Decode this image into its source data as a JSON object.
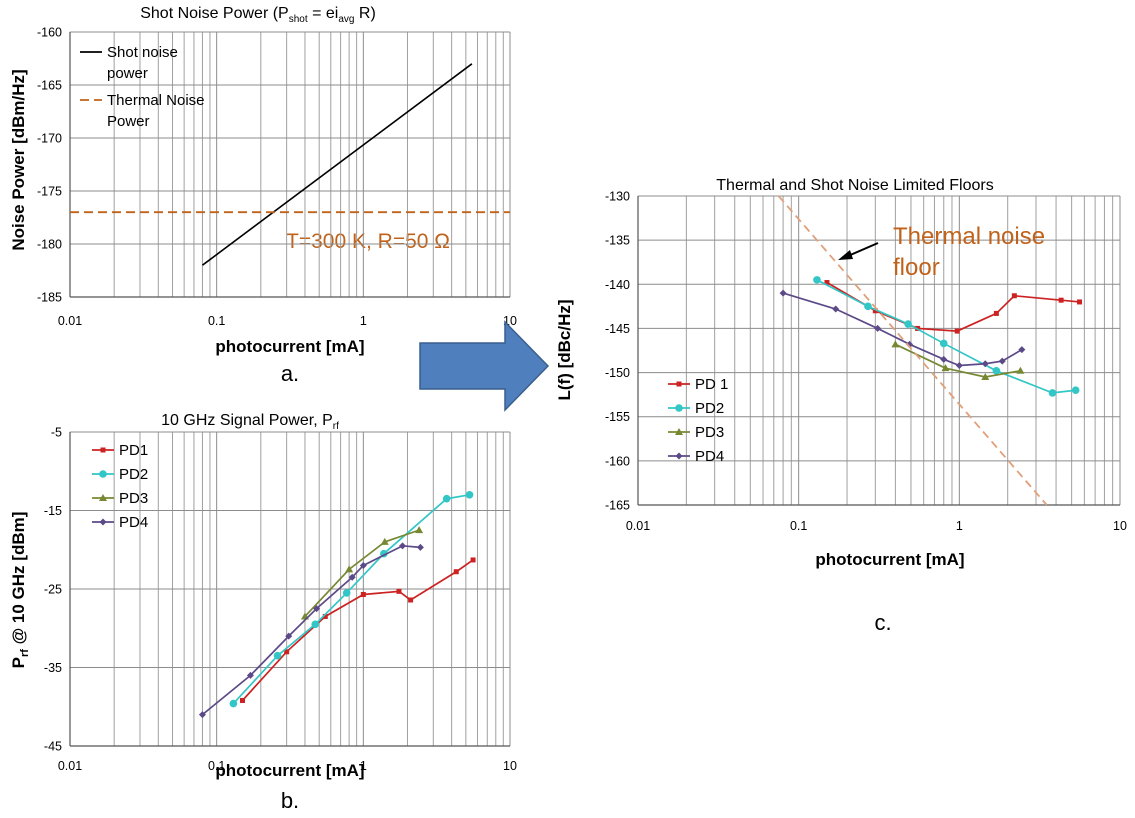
{
  "captions": {
    "a": "a.",
    "b": "b.",
    "c": "c."
  },
  "chart_data": [
    {
      "id": "a",
      "type": "line",
      "title": "Shot Noise Power (P",
      "title_sub1": "shot",
      "title_mid": " = ei",
      "title_sub2": "avg",
      "title_end": " R)",
      "xlabel": "photocurrent [mA]",
      "ylabel": "Noise Power [dBm/Hz]",
      "xscale": "log",
      "xlim": [
        0.01,
        10
      ],
      "ylim": [
        -185,
        -160
      ],
      "xticks": [
        0.01,
        0.1,
        1,
        10
      ],
      "xtick_labels": [
        "0.01",
        "0.1",
        "1",
        "10"
      ],
      "yticks": [
        -160,
        -165,
        -170,
        -175,
        -180,
        -185
      ],
      "ytick_labels": [
        "-160",
        "-165",
        "-170",
        "-175",
        "-180",
        "-185"
      ],
      "grid": true,
      "legend_position": "top-left",
      "annotation": "T=300 K, R=50 Ω",
      "series": [
        {
          "name": "Shot noise power",
          "legend_lines": [
            "Shot noise",
            "power"
          ],
          "color": "#000000",
          "dash": "",
          "marker": "none",
          "x": [
            0.08,
            5.5
          ],
          "y": [
            -182,
            -163
          ]
        },
        {
          "name": "Thermal Noise Power",
          "legend_lines": [
            "Thermal Noise",
            "Power"
          ],
          "color": "#c0621a",
          "dash": "9,5",
          "marker": "none",
          "x": [
            0.01,
            10
          ],
          "y": [
            -177,
            -177
          ]
        }
      ]
    },
    {
      "id": "b",
      "type": "line",
      "title": "10 GHz Signal Power, P",
      "title_sub": "rf",
      "xlabel": "photocurrent [mA]",
      "ylabel_main": "P",
      "ylabel_sub": "rf",
      "ylabel_rest": " @ 10 GHz [dBm]",
      "xscale": "log",
      "xlim": [
        0.01,
        10
      ],
      "ylim": [
        -45,
        -5
      ],
      "xticks": [
        0.01,
        0.1,
        1,
        10
      ],
      "xtick_labels": [
        "0.01",
        "0.1",
        "1",
        "10"
      ],
      "yticks": [
        -5,
        -15,
        -25,
        -35,
        -45
      ],
      "ytick_labels": [
        "-5",
        "-15",
        "-25",
        "-35",
        "-45"
      ],
      "grid": true,
      "legend_position": "top-left",
      "series": [
        {
          "name": "PD1",
          "color": "#cc2222",
          "marker": "square",
          "x": [
            0.15,
            0.3,
            0.55,
            1.0,
            1.75,
            2.1,
            4.3,
            5.6
          ],
          "y": [
            -39.2,
            -33,
            -28.5,
            -25.7,
            -25.3,
            -26.4,
            -22.8,
            -21.3
          ]
        },
        {
          "name": "PD2",
          "color": "#33c6c6",
          "marker": "circle",
          "x": [
            0.13,
            0.26,
            0.47,
            0.77,
            1.38,
            3.7,
            5.3
          ],
          "y": [
            -39.6,
            -33.5,
            -29.5,
            -25.5,
            -20.5,
            -13.5,
            -13
          ]
        },
        {
          "name": "PD3",
          "color": "#778833",
          "marker": "triangle",
          "x": [
            0.4,
            0.8,
            1.4,
            2.4
          ],
          "y": [
            -28.5,
            -22.5,
            -19,
            -17.5
          ]
        },
        {
          "name": "PD4",
          "color": "#5c4a88",
          "marker": "diamond",
          "x": [
            0.08,
            0.17,
            0.31,
            0.48,
            0.84,
            1.0,
            1.85,
            2.45
          ],
          "y": [
            -41,
            -36,
            -31,
            -27.5,
            -23.5,
            -22,
            -19.5,
            -19.7
          ]
        }
      ]
    },
    {
      "id": "c",
      "type": "line",
      "title": "Thermal and Shot Noise Limited Floors",
      "xlabel": "photocurrent [mA]",
      "ylabel": "L(f) [dBc/Hz]",
      "xscale": "log",
      "xlim": [
        0.01,
        10
      ],
      "ylim": [
        -165,
        -130
      ],
      "xticks": [
        0.01,
        0.1,
        1,
        10
      ],
      "xtick_labels": [
        "0.01",
        "0.1",
        "1",
        "10"
      ],
      "yticks": [
        -130,
        -135,
        -140,
        -145,
        -150,
        -155,
        -160,
        -165
      ],
      "ytick_labels": [
        "-130",
        "-135",
        "-140",
        "-145",
        "-150",
        "-155",
        "-160",
        "-165"
      ],
      "grid": true,
      "legend_position": "middle-left",
      "annotation": "Thermal noise floor",
      "annotation_lines": [
        "Thermal noise",
        "floor"
      ],
      "series": [
        {
          "name": "PD 1",
          "color": "#cc2222",
          "marker": "square",
          "x": [
            0.15,
            0.3,
            0.55,
            0.97,
            1.7,
            2.2,
            4.3,
            5.6
          ],
          "y": [
            -139.8,
            -143,
            -145,
            -145.3,
            -143.3,
            -141.3,
            -141.8,
            -142
          ]
        },
        {
          "name": "PD2",
          "color": "#33c6c6",
          "marker": "circle",
          "x": [
            0.13,
            0.27,
            0.48,
            0.8,
            1.7,
            3.8,
            5.3
          ],
          "y": [
            -139.5,
            -142.5,
            -144.5,
            -146.7,
            -149.8,
            -152.3,
            -152
          ]
        },
        {
          "name": "PD3",
          "color": "#778833",
          "marker": "triangle",
          "x": [
            0.4,
            0.82,
            1.45,
            2.4
          ],
          "y": [
            -146.8,
            -149.5,
            -150.5,
            -149.8
          ]
        },
        {
          "name": "PD4",
          "color": "#5c4a88",
          "marker": "diamond",
          "x": [
            0.08,
            0.17,
            0.31,
            0.49,
            0.8,
            1.0,
            1.45,
            1.85,
            2.45
          ],
          "y": [
            -141,
            -142.8,
            -145,
            -146.8,
            -148.5,
            -149.2,
            -149,
            -148.7,
            -147.4
          ]
        },
        {
          "name": "Thermal noise floor",
          "legend": false,
          "color": "#e0a07a",
          "dash": "8,5",
          "marker": "none",
          "x": [
            0.075,
            3.5
          ],
          "y": [
            -130,
            -165
          ]
        }
      ]
    }
  ],
  "arrow": {
    "color": "#4f7fbd",
    "edge": "#3a5f8f"
  }
}
